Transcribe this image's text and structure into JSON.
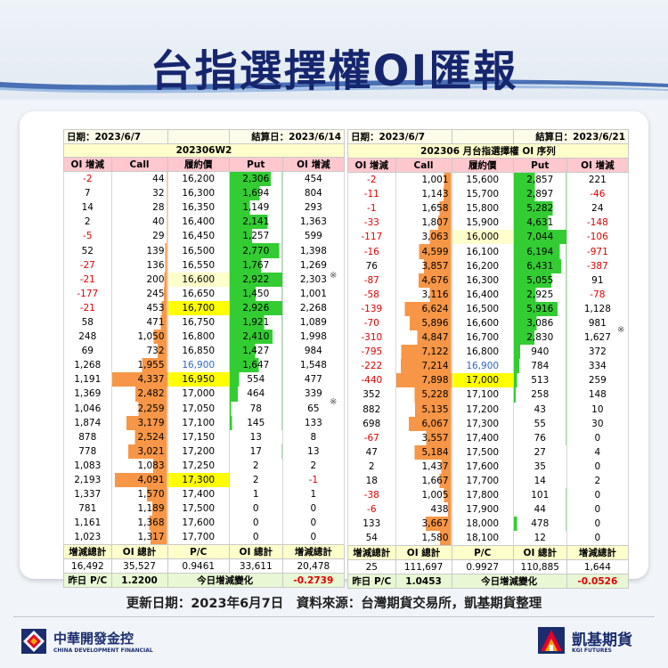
{
  "title": "台指選擇權OI匯報",
  "left": {
    "date_label": "日期：2023/6/7",
    "settle_label": "結算日：2023/6/14",
    "series": "202306W2",
    "headers": [
      "OI 增減",
      "Call",
      "履約價",
      "Put",
      "OI 增減"
    ],
    "rows": [
      [
        "-2",
        "44",
        "16,200",
        "2,306",
        "454"
      ],
      [
        "7",
        "32",
        "16,300",
        "1,694",
        "804"
      ],
      [
        "14",
        "28",
        "16,350",
        "1,149",
        "293"
      ],
      [
        "2",
        "40",
        "16,400",
        "2,141",
        "1,363"
      ],
      [
        "-5",
        "29",
        "16,450",
        "1,257",
        "599"
      ],
      [
        "52",
        "139",
        "16,500",
        "2,770",
        "1,398"
      ],
      [
        "-27",
        "136",
        "16,550",
        "1,767",
        "1,269"
      ],
      [
        "-21",
        "200",
        "16,600",
        "2,922",
        "2,303"
      ],
      [
        "-177",
        "245",
        "16,650",
        "1,450",
        "1,001"
      ],
      [
        "-21",
        "453",
        "16,700",
        "2,926",
        "2,268"
      ],
      [
        "58",
        "471",
        "16,750",
        "1,921",
        "1,089"
      ],
      [
        "248",
        "1,050",
        "16,800",
        "2,410",
        "1,998"
      ],
      [
        "69",
        "732",
        "16,850",
        "1,427",
        "984"
      ],
      [
        "1,268",
        "1,955",
        "16,900",
        "1,647",
        "1,548"
      ],
      [
        "1,191",
        "4,337",
        "16,950",
        "554",
        "477"
      ],
      [
        "1,369",
        "2,482",
        "17,000",
        "464",
        "339"
      ],
      [
        "1,046",
        "2,259",
        "17,050",
        "78",
        "65"
      ],
      [
        "1,874",
        "3,179",
        "17,100",
        "145",
        "133"
      ],
      [
        "878",
        "2,524",
        "17,150",
        "13",
        "8"
      ],
      [
        "778",
        "3,021",
        "17,200",
        "17",
        "13"
      ],
      [
        "1,083",
        "1,083",
        "17,250",
        "2",
        "2"
      ],
      [
        "2,193",
        "4,091",
        "17,300",
        "2",
        "-1"
      ],
      [
        "1,337",
        "1,570",
        "17,400",
        "1",
        "1"
      ],
      [
        "781",
        "1,189",
        "17,500",
        "0",
        "0"
      ],
      [
        "1,161",
        "1,368",
        "17,600",
        "0",
        "0"
      ],
      [
        "1,023",
        "1,317",
        "17,700",
        "0",
        "0"
      ]
    ],
    "total_headers": [
      "增減總計",
      "OI 總計",
      "P/C",
      "OI 總計",
      "增減總計"
    ],
    "totals": [
      "16,492",
      "35,527",
      "0.9461",
      "33,611",
      "20,478"
    ],
    "pc_label": "昨日 P/C",
    "pc_prev": "1.2200",
    "pc_change_label": "今日增減變化",
    "pc_change": "-0.2739"
  },
  "right": {
    "date_label": "日期：2023/6/7",
    "settle_label": "結算日：2023/6/21",
    "series": "202306 月台指選擇權 OI 序列",
    "headers": [
      "OI 增減",
      "Call",
      "履約價",
      "Put",
      "OI 增減"
    ],
    "rows": [
      [
        "-2",
        "1,001",
        "15,600",
        "2,857",
        "221"
      ],
      [
        "-11",
        "1,143",
        "15,700",
        "2,897",
        "-46"
      ],
      [
        "-1",
        "1,658",
        "15,800",
        "5,282",
        "24"
      ],
      [
        "-33",
        "1,807",
        "15,900",
        "4,631",
        "-148"
      ],
      [
        "-117",
        "3,063",
        "16,000",
        "7,044",
        "-106"
      ],
      [
        "-16",
        "4,599",
        "16,100",
        "6,194",
        "-971"
      ],
      [
        "76",
        "3,857",
        "16,200",
        "6,431",
        "-387"
      ],
      [
        "-87",
        "4,676",
        "16,300",
        "5,055",
        "91"
      ],
      [
        "-58",
        "3,116",
        "16,400",
        "2,925",
        "-78"
      ],
      [
        "-139",
        "6,624",
        "16,500",
        "5,916",
        "1,128"
      ],
      [
        "-70",
        "5,896",
        "16,600",
        "3,086",
        "981"
      ],
      [
        "-310",
        "4,847",
        "16,700",
        "2,830",
        "1,627"
      ],
      [
        "-795",
        "7,122",
        "16,800",
        "940",
        "372"
      ],
      [
        "-222",
        "7,214",
        "16,900",
        "784",
        "334"
      ],
      [
        "-440",
        "7,898",
        "17,000",
        "513",
        "259"
      ],
      [
        "352",
        "5,228",
        "17,100",
        "258",
        "148"
      ],
      [
        "882",
        "5,135",
        "17,200",
        "43",
        "10"
      ],
      [
        "698",
        "6,067",
        "17,300",
        "55",
        "30"
      ],
      [
        "-67",
        "3,557",
        "17,400",
        "76",
        "0"
      ],
      [
        "47",
        "5,184",
        "17,500",
        "27",
        "4"
      ],
      [
        "2",
        "1,437",
        "17,600",
        "35",
        "0"
      ],
      [
        "18",
        "1,667",
        "17,700",
        "14",
        "2"
      ],
      [
        "-38",
        "1,005",
        "17,800",
        "101",
        "0"
      ],
      [
        "-6",
        "438",
        "17,900",
        "44",
        "0"
      ],
      [
        "133",
        "3,667",
        "18,000",
        "478",
        "0"
      ],
      [
        "54",
        "1,580",
        "18,100",
        "12",
        "0"
      ]
    ],
    "total_headers": [
      "增減總計",
      "OI 總計",
      "P/C",
      "OI 總計",
      "增減總計"
    ],
    "totals": [
      "25",
      "111,697",
      "0.9927",
      "110,885",
      "1,644"
    ],
    "pc_label": "昨日 P/C",
    "pc_prev": "1.0453",
    "pc_change_label": "今日增減變化",
    "pc_change": "-0.0526"
  },
  "star_mark": "※",
  "footnote": "更新日期：2023年6月7日　資料來源：台灣期貨交易所，凱基期貨整理",
  "logo_left": {
    "name": "中華開發金控",
    "sub": "CHINA DEVELOPMENT FINANCIAL"
  },
  "logo_right": {
    "name": "凱基期貨",
    "sub": "KGI FUTURES"
  },
  "colors": {
    "title": "#16266e",
    "call_bar": "#f79646",
    "put_bar": "#33cc33",
    "atm": "#ffff00",
    "negative": "#e00000"
  }
}
